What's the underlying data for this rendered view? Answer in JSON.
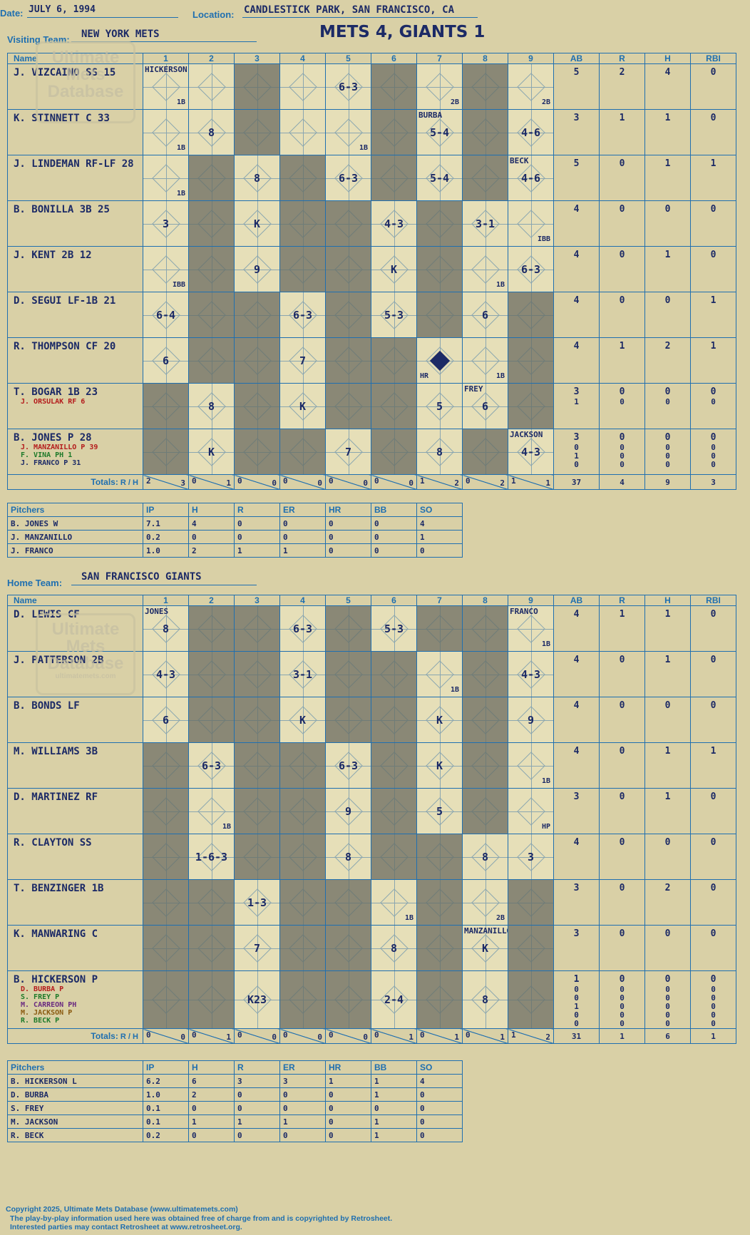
{
  "header": {
    "date_label": "Date:",
    "date": "JULY 6, 1994",
    "location_label": "Location:",
    "location": "CANDLESTICK PARK, SAN FRANCISCO, CA",
    "visiting_label": "Visiting Team:",
    "visiting_team": "NEW YORK METS",
    "score_title": "METS 4, GIANTS 1",
    "home_label": "Home Team:",
    "home_team": "SAN FRANCISCO GIANTS"
  },
  "watermark": {
    "line1": "Ultimate",
    "line2": "Mets",
    "line3": "Database",
    "url": "ultimatemets.com"
  },
  "columns": {
    "name": "Name",
    "innings": [
      "1",
      "2",
      "3",
      "4",
      "5",
      "6",
      "7",
      "8",
      "9"
    ],
    "ab": "AB",
    "r": "R",
    "h": "H",
    "rbi": "RBI"
  },
  "totals_label": "Totals:",
  "rh_r": "R",
  "rh_h": "H",
  "visitors": {
    "batters": [
      {
        "name": "J. VIZCAINO SS",
        "num": "15",
        "subs": [],
        "stats": [
          [
            "5"
          ],
          [
            "2"
          ],
          [
            "4"
          ],
          [
            "0"
          ]
        ]
      },
      {
        "name": "K. STINNETT C",
        "num": "33",
        "subs": [],
        "stats": [
          [
            "3"
          ],
          [
            "1"
          ],
          [
            "1"
          ],
          [
            "0"
          ]
        ]
      },
      {
        "name": "J. LINDEMAN RF-LF",
        "num": "28",
        "subs": [],
        "stats": [
          [
            "5"
          ],
          [
            "0"
          ],
          [
            "1"
          ],
          [
            "1"
          ]
        ]
      },
      {
        "name": "B. BONILLA 3B",
        "num": "25",
        "subs": [],
        "stats": [
          [
            "4"
          ],
          [
            "0"
          ],
          [
            "0"
          ],
          [
            "0"
          ]
        ]
      },
      {
        "name": "J. KENT 2B",
        "num": "12",
        "subs": [],
        "stats": [
          [
            "4"
          ],
          [
            "0"
          ],
          [
            "1"
          ],
          [
            "0"
          ]
        ]
      },
      {
        "name": "D. SEGUI LF-1B",
        "num": "21",
        "subs": [],
        "stats": [
          [
            "4"
          ],
          [
            "0"
          ],
          [
            "0"
          ],
          [
            "1"
          ]
        ]
      },
      {
        "name": "R. THOMPSON CF",
        "num": "20",
        "subs": [],
        "stats": [
          [
            "4"
          ],
          [
            "1"
          ],
          [
            "2"
          ],
          [
            "1"
          ]
        ]
      },
      {
        "name": "T. BOGAR 1B",
        "num": "23",
        "subs": [
          {
            "t": "J. ORSULAK RF 6",
            "c": "#b41c1c"
          }
        ],
        "stats": [
          [
            "3",
            "1"
          ],
          [
            "0",
            "0"
          ],
          [
            "0",
            "0"
          ],
          [
            "0",
            "0"
          ]
        ]
      },
      {
        "name": "B. JONES P",
        "num": "28",
        "subs": [
          {
            "t": "J. MANZANILLO P 39",
            "c": "#b41c1c"
          },
          {
            "t": "F. VINA PH 1",
            "c": "#1e7a2a"
          },
          {
            "t": "J. FRANCO P 31",
            "c": "#1c2a66"
          }
        ],
        "stats": [
          [
            "3",
            "0",
            "1",
            "0"
          ],
          [
            "0",
            "0",
            "0",
            "0"
          ],
          [
            "0",
            "0",
            "0",
            "0"
          ],
          [
            "0",
            "0",
            "0",
            "0"
          ]
        ]
      }
    ],
    "grid": [
      [
        "1B",
        "",
        "g",
        "",
        "6-3",
        "g",
        "2B",
        "g",
        "2B"
      ],
      [
        "1B",
        "8",
        "g",
        "",
        "1B",
        "g",
        "5-4",
        "g",
        "4-6"
      ],
      [
        "1B",
        "g",
        "8",
        "g",
        "6-3",
        "g",
        "5-4",
        "g",
        "4-6"
      ],
      [
        "3",
        "g",
        "K",
        "g",
        "g",
        "4-3",
        "g",
        "3-1",
        "IBB"
      ],
      [
        "IBB",
        "g",
        "9",
        "g",
        "g",
        "K",
        "g",
        "1B",
        "6-3"
      ],
      [
        "6-4",
        "g",
        "g",
        "6-3",
        "g",
        "5-3",
        "g",
        "6",
        "g"
      ],
      [
        "6",
        "g",
        "g",
        "7",
        "g",
        "g",
        "HR",
        "1B",
        "g"
      ],
      [
        "g",
        "8",
        "g",
        "K",
        "g",
        "g",
        "5",
        "6",
        "g"
      ],
      [
        "g",
        "K",
        "g",
        "g",
        "7",
        "g",
        "8",
        "g",
        "4-3"
      ]
    ],
    "pitcher_changes": [
      {
        "row": 0,
        "col": 0,
        "text": "HICKERSON"
      },
      {
        "row": 1,
        "col": 6,
        "text": "BURBA"
      },
      {
        "row": 2,
        "col": 8,
        "text": "BECK"
      },
      {
        "row": 7,
        "col": 7,
        "text": "FREY"
      },
      {
        "row": 8,
        "col": 8,
        "text": "JACKSON"
      }
    ],
    "inning_totals": [
      [
        "2",
        "3"
      ],
      [
        "0",
        "1"
      ],
      [
        "0",
        "0"
      ],
      [
        "0",
        "0"
      ],
      [
        "0",
        "0"
      ],
      [
        "0",
        "0"
      ],
      [
        "1",
        "2"
      ],
      [
        "0",
        "2"
      ],
      [
        "1",
        "1"
      ]
    ],
    "totals": [
      "37",
      "4",
      "9",
      "3"
    ]
  },
  "visitor_pitchers": {
    "header": [
      "Pitchers",
      "IP",
      "H",
      "R",
      "ER",
      "HR",
      "BB",
      "SO"
    ],
    "rows": [
      [
        "B. JONES  W",
        "7.1",
        "4",
        "0",
        "0",
        "0",
        "0",
        "4"
      ],
      [
        "J. MANZANILLO",
        "0.2",
        "0",
        "0",
        "0",
        "0",
        "0",
        "1"
      ],
      [
        "J. FRANCO",
        "1.0",
        "2",
        "1",
        "1",
        "0",
        "0",
        "0"
      ]
    ]
  },
  "home": {
    "batters": [
      {
        "name": "D. LEWIS CF",
        "num": "",
        "subs": [],
        "stats": [
          [
            "4"
          ],
          [
            "1"
          ],
          [
            "1"
          ],
          [
            "0"
          ]
        ]
      },
      {
        "name": "J. PATTERSON 2B",
        "num": "",
        "subs": [],
        "stats": [
          [
            "4"
          ],
          [
            "0"
          ],
          [
            "1"
          ],
          [
            "0"
          ]
        ]
      },
      {
        "name": "B. BONDS LF",
        "num": "",
        "subs": [],
        "stats": [
          [
            "4"
          ],
          [
            "0"
          ],
          [
            "0"
          ],
          [
            "0"
          ]
        ]
      },
      {
        "name": "M. WILLIAMS 3B",
        "num": "",
        "subs": [],
        "stats": [
          [
            "4"
          ],
          [
            "0"
          ],
          [
            "1"
          ],
          [
            "1"
          ]
        ]
      },
      {
        "name": "D. MARTINEZ RF",
        "num": "",
        "subs": [],
        "stats": [
          [
            "3"
          ],
          [
            "0"
          ],
          [
            "1"
          ],
          [
            "0"
          ]
        ]
      },
      {
        "name": "R. CLAYTON SS",
        "num": "",
        "subs": [],
        "stats": [
          [
            "4"
          ],
          [
            "0"
          ],
          [
            "0"
          ],
          [
            "0"
          ]
        ]
      },
      {
        "name": "T. BENZINGER 1B",
        "num": "",
        "subs": [],
        "stats": [
          [
            "3"
          ],
          [
            "0"
          ],
          [
            "2"
          ],
          [
            "0"
          ]
        ]
      },
      {
        "name": "K. MANWARING C",
        "num": "",
        "subs": [],
        "stats": [
          [
            "3"
          ],
          [
            "0"
          ],
          [
            "0"
          ],
          [
            "0"
          ]
        ]
      },
      {
        "name": "B. HICKERSON P",
        "num": "",
        "subs": [
          {
            "t": "D. BURBA P",
            "c": "#b41c1c"
          },
          {
            "t": "S. FREY P",
            "c": "#1e7a2a"
          },
          {
            "t": "M. CARREON PH",
            "c": "#6a2a80"
          },
          {
            "t": "M. JACKSON P",
            "c": "#8a5a10"
          },
          {
            "t": "R. BECK P",
            "c": "#1e7a2a"
          }
        ],
        "stats": [
          [
            "1",
            "0",
            "0",
            "1",
            "0",
            "0"
          ],
          [
            "0",
            "0",
            "0",
            "0",
            "0",
            "0"
          ],
          [
            "0",
            "0",
            "0",
            "0",
            "0",
            "0"
          ],
          [
            "0",
            "0",
            "0",
            "0",
            "0",
            "0"
          ]
        ]
      }
    ],
    "grid": [
      [
        "8",
        "g",
        "g",
        "6-3",
        "g",
        "5-3",
        "g",
        "g",
        "1B"
      ],
      [
        "4-3",
        "g",
        "g",
        "3-1",
        "g",
        "g",
        "1B",
        "g",
        "4-3"
      ],
      [
        "6",
        "g",
        "g",
        "K",
        "g",
        "g",
        "K",
        "g",
        "9"
      ],
      [
        "g",
        "6-3",
        "g",
        "g",
        "6-3",
        "g",
        "K",
        "g",
        "1B"
      ],
      [
        "g",
        "1B",
        "g",
        "g",
        "9",
        "g",
        "5",
        "g",
        "HP"
      ],
      [
        "g",
        "1-6-3",
        "g",
        "g",
        "8",
        "g",
        "g",
        "8",
        "3"
      ],
      [
        "g",
        "g",
        "1-3",
        "g",
        "g",
        "1B",
        "g",
        "2B",
        "g"
      ],
      [
        "g",
        "g",
        "7",
        "g",
        "g",
        "8",
        "g",
        "K",
        "g"
      ],
      [
        "g",
        "g",
        "K23",
        "g",
        "g",
        "2-4",
        "g",
        "8",
        "g"
      ]
    ],
    "pitcher_changes": [
      {
        "row": 0,
        "col": 0,
        "text": "JONES"
      },
      {
        "row": 0,
        "col": 8,
        "text": "FRANCO"
      },
      {
        "row": 7,
        "col": 7,
        "text": "MANZANILLO"
      }
    ],
    "inning_totals": [
      [
        "0",
        "0"
      ],
      [
        "0",
        "1"
      ],
      [
        "0",
        "0"
      ],
      [
        "0",
        "0"
      ],
      [
        "0",
        "0"
      ],
      [
        "0",
        "1"
      ],
      [
        "0",
        "1"
      ],
      [
        "0",
        "1"
      ],
      [
        "1",
        "2"
      ]
    ],
    "totals": [
      "31",
      "1",
      "6",
      "1"
    ]
  },
  "home_pitchers": {
    "header": [
      "Pitchers",
      "IP",
      "H",
      "R",
      "ER",
      "HR",
      "BB",
      "SO"
    ],
    "rows": [
      [
        "B. HICKERSON  L",
        "6.2",
        "6",
        "3",
        "3",
        "1",
        "1",
        "4"
      ],
      [
        "D. BURBA",
        "1.0",
        "2",
        "0",
        "0",
        "0",
        "1",
        "0"
      ],
      [
        "S. FREY",
        "0.1",
        "0",
        "0",
        "0",
        "0",
        "0",
        "0"
      ],
      [
        "M. JACKSON",
        "0.1",
        "1",
        "1",
        "1",
        "0",
        "1",
        "0"
      ],
      [
        "R. BECK",
        "0.2",
        "0",
        "0",
        "0",
        "0",
        "1",
        "0"
      ]
    ]
  },
  "footer": {
    "line1": "Copyright 2025, Ultimate Mets Database (www.ultimatemets.com)",
    "line2": "The play-by-play information used here was obtained free of charge from and is copyrighted by Retrosheet.",
    "line3": "Interested parties may contact Retrosheet at www.retrosheet.org."
  }
}
